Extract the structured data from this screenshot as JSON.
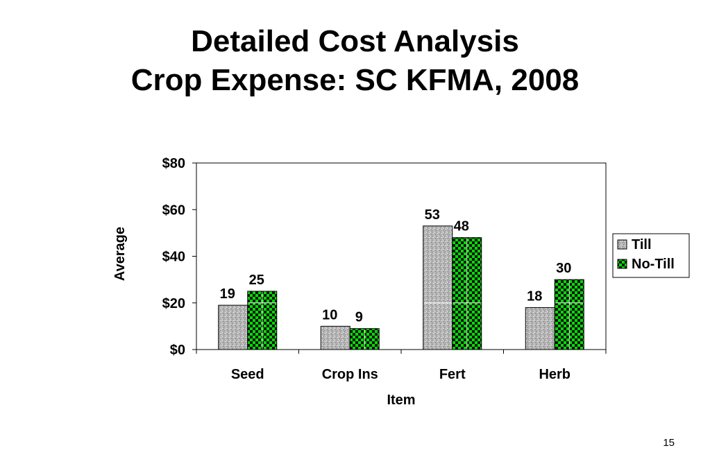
{
  "slide": {
    "title_line1": "Detailed Cost Analysis",
    "title_line2": "Crop Expense: SC KFMA, 2008",
    "page_number": "15"
  },
  "chart_data": {
    "type": "bar",
    "categories": [
      "Seed",
      "Crop Ins",
      "Fert",
      "Herb"
    ],
    "series": [
      {
        "name": "Till",
        "values": [
          19,
          10,
          53,
          18
        ],
        "color": "#a9a9a9",
        "pattern": "gray-speckle"
      },
      {
        "name": "No-Till",
        "values": [
          25,
          9,
          48,
          30
        ],
        "color": "#00cc00",
        "pattern": "green-black-checker"
      }
    ],
    "data_labels": [
      [
        "19",
        "10",
        "53",
        "18"
      ],
      [
        "25",
        "9",
        "48",
        "30"
      ]
    ],
    "xlabel": "Item",
    "ylabel": "Average",
    "ylim": [
      0,
      80
    ],
    "yticks": [
      0,
      20,
      40,
      60,
      80
    ],
    "ytick_labels": [
      "$0",
      "$20",
      "$40",
      "$60",
      "$80"
    ],
    "grid": false,
    "legend_position": "right"
  }
}
